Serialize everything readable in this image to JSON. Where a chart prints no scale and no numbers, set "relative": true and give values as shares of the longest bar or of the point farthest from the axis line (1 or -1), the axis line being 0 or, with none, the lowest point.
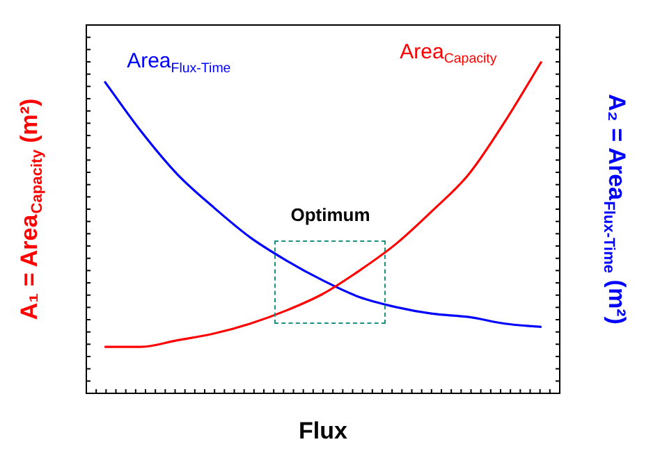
{
  "chart_data": {
    "type": "line",
    "relative": true,
    "xlabel": "Flux",
    "ylabel": "A₁ = Area$_{Capacity}$ (m²)",
    "y2label": "A₂ = Area$_{Flux-Time}$ (m²)",
    "categories": [
      null,
      null,
      null,
      null,
      null,
      null,
      null,
      null,
      null,
      null,
      null,
      null,
      null
    ],
    "legend": false,
    "marker": "none",
    "line_style": "solid",
    "annotations": [
      "Optimum"
    ],
    "series": [
      {
        "name": "Area$_{Capacity}$",
        "color": "#ff0000",
        "values": [
          0.14,
          0.14,
          0.16,
          0.18,
          0.21,
          0.25,
          0.3,
          0.37,
          0.45,
          0.55,
          0.66,
          0.82,
          1
        ]
      },
      {
        "name": "Area$_{Flux-Time}$",
        "color": "#0000ff",
        "values": [
          0.94,
          0.79,
          0.66,
          0.56,
          0.47,
          0.4,
          0.34,
          0.29,
          0.26,
          0.24,
          0.23,
          0.21,
          0.2
        ]
      }
    ]
  }
}
